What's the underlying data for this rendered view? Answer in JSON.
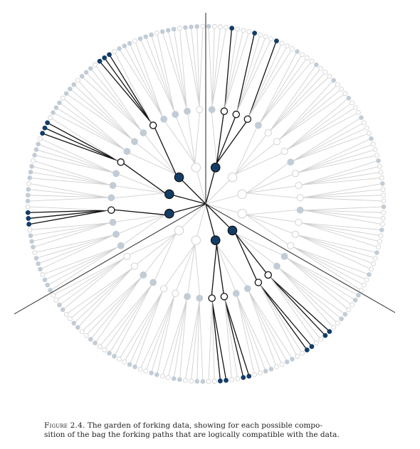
{
  "figure": {
    "label": "Figure 2.4.",
    "caption_line1": "The garden of forking data, showing for each possible compo-",
    "caption_line2": "sition of the bag the forking paths that are logically compatible with the data."
  },
  "colors": {
    "blue_marble": "#143d66",
    "white_marble_stroke": "#777777",
    "compatible_path": "#111111",
    "incompatible_path": "#d0d0d0",
    "faded_blue": "#c2ccd6",
    "divider": "#222222"
  }
}
